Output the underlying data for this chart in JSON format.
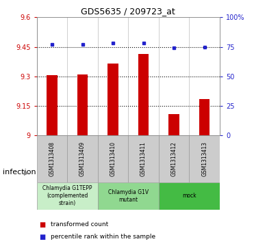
{
  "title": "GDS5635 / 209723_at",
  "samples": [
    "GSM1313408",
    "GSM1313409",
    "GSM1313410",
    "GSM1313411",
    "GSM1313412",
    "GSM1313413"
  ],
  "bar_values": [
    9.305,
    9.308,
    9.365,
    9.415,
    9.108,
    9.185
  ],
  "dot_values": [
    77,
    77,
    78,
    78,
    74,
    75
  ],
  "bar_color": "#cc0000",
  "dot_color": "#2222cc",
  "ylim_left": [
    9.0,
    9.6
  ],
  "ylim_right": [
    0,
    100
  ],
  "yticks_left": [
    9.0,
    9.15,
    9.3,
    9.45,
    9.6
  ],
  "yticks_right": [
    0,
    25,
    50,
    75,
    100
  ],
  "ytick_labels_left": [
    "9",
    "9.15",
    "9.3",
    "9.45",
    "9.6"
  ],
  "ytick_labels_right": [
    "0",
    "25",
    "50",
    "75",
    "100%"
  ],
  "hlines": [
    9.15,
    9.3,
    9.45
  ],
  "groups": [
    {
      "label": "Chlamydia G1TEPP\n(complemented\nstrain)",
      "start": 0,
      "end": 2,
      "color": "#c8eec8"
    },
    {
      "label": "Chlamydia G1V\nmutant",
      "start": 2,
      "end": 4,
      "color": "#90d890"
    },
    {
      "label": "mock",
      "start": 4,
      "end": 6,
      "color": "#44bb44"
    }
  ],
  "factor_label": "infection",
  "legend_bar_label": "transformed count",
  "legend_dot_label": "percentile rank within the sample",
  "sample_box_color": "#cccccc",
  "plot_bg": "#ffffff"
}
